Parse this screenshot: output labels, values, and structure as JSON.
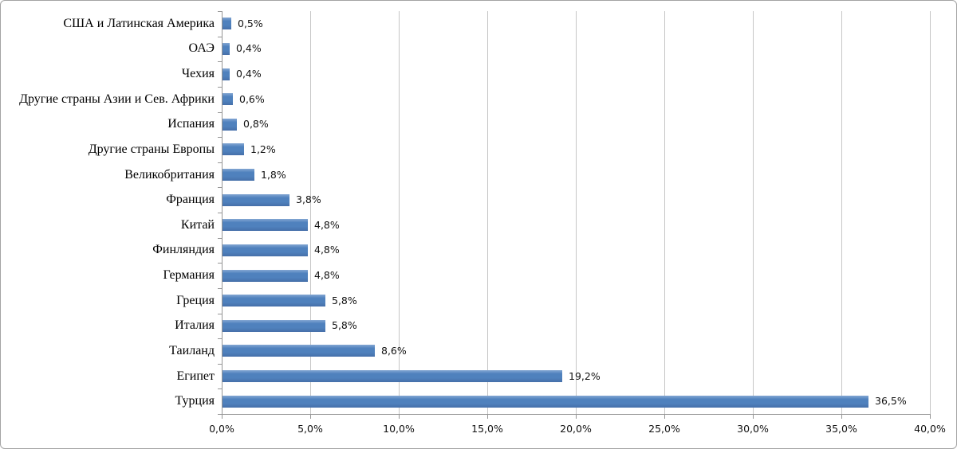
{
  "chart_data": {
    "type": "bar",
    "orientation": "horizontal",
    "title": "",
    "xlabel": "",
    "ylabel": "",
    "legend": "none",
    "grid": "vertical-gridlines",
    "categories": [
      "США и Латинская Америка",
      "ОАЭ",
      "Чехия",
      "Другие страны Азии и Сев. Африки",
      "Испания",
      "Другие страны Европы",
      "Великобритания",
      "Франция",
      "Китай",
      "Финляндия",
      "Германия",
      "Греция",
      "Италия",
      "Таиланд",
      "Египет",
      "Турция"
    ],
    "values": [
      0.5,
      0.4,
      0.4,
      0.6,
      0.8,
      1.2,
      1.8,
      3.8,
      4.8,
      4.8,
      4.8,
      5.8,
      5.8,
      8.6,
      19.2,
      36.5
    ],
    "value_labels": [
      "0,5%",
      "0,4%",
      "0,4%",
      "0,6%",
      "0,8%",
      "1,2%",
      "1,8%",
      "3,8%",
      "4,8%",
      "4,8%",
      "4,8%",
      "5,8%",
      "5,8%",
      "8,6%",
      "19,2%",
      "36,5%"
    ],
    "xlim": [
      0,
      40
    ],
    "x_tick_values": [
      0,
      5,
      10,
      15,
      20,
      25,
      30,
      35,
      40
    ],
    "x_tick_labels": [
      "0,0%",
      "5,0%",
      "10,0%",
      "15,0%",
      "20,0%",
      "25,0%",
      "30,0%",
      "35,0%",
      "40,0%"
    ],
    "colors": {
      "bar": "#4f81bd",
      "bar_highlight": "#84a7d3",
      "bar_shadow": "#466fa9",
      "gridline": "#c6c6c6",
      "axis": "#969696",
      "frame_border": "#a3a3a3",
      "background": "#ffffff",
      "text": "#000000"
    }
  }
}
